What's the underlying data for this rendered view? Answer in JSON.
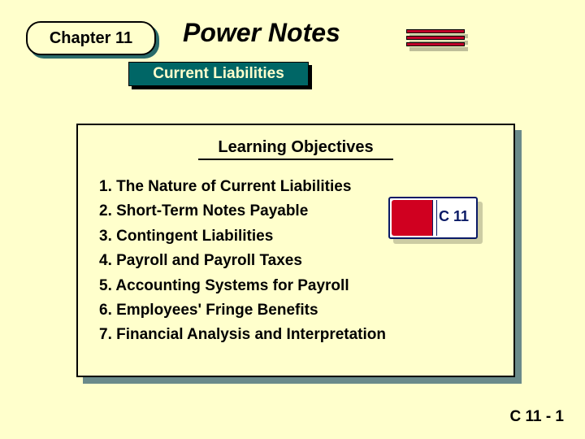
{
  "colors": {
    "background": "#ffffcc",
    "teal_shadow": "#2a6b6b",
    "topic_bg": "#006666",
    "decor_bar": "#c0002a",
    "panel_shadow": "#6a8a8a",
    "book_red": "#d00020",
    "book_border": "#0a1a66",
    "text": "#000000"
  },
  "fonts": {
    "chapter_size": 20,
    "title_size": 32,
    "topic_size": 19,
    "objectives_title_size": 20,
    "item_size": 19,
    "footer_size": 19,
    "book_label_size": 18
  },
  "chapter": "Chapter 11",
  "title": "Power Notes",
  "topic": "Current Liabilities",
  "objectives_title": "Learning Objectives",
  "objectives": [
    "1. The Nature of Current Liabilities",
    "2. Short-Term Notes Payable",
    "3. Contingent Liabilities",
    "4. Payroll and Payroll Taxes",
    "5. Accounting Systems for Payroll",
    "6. Employees' Fringe Benefits",
    "7. Financial Analysis and Interpretation"
  ],
  "book_label": "C 11",
  "footer": "C 11 - 1"
}
